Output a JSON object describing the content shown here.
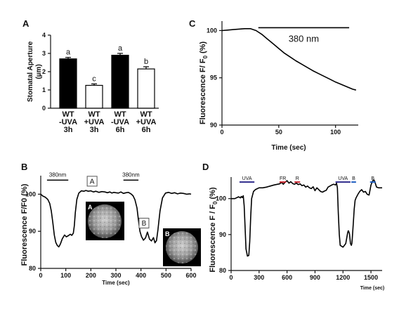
{
  "panels": {
    "A": {
      "label": "A",
      "chart_data": {
        "type": "bar",
        "categories": [
          [
            "WT",
            "-UVA",
            "3h"
          ],
          [
            "WT",
            "+UVA",
            "3h"
          ],
          [
            "WT",
            "-UVA",
            "6h"
          ],
          [
            "WT",
            "+UVA",
            "6h"
          ]
        ],
        "values": [
          2.7,
          1.25,
          2.9,
          2.15
        ],
        "errors": [
          0.08,
          0.08,
          0.1,
          0.12
        ],
        "fills": [
          "#000000",
          "#ffffff",
          "#000000",
          "#ffffff"
        ],
        "letters": [
          "a",
          "c",
          "a",
          "b"
        ],
        "ylabel_lines": [
          "Stomatal Aperture",
          "(µm)"
        ],
        "ylim": [
          0,
          4
        ],
        "yticks": [
          0,
          1,
          2,
          3,
          4
        ]
      }
    },
    "B": {
      "label": "B",
      "chart_data": {
        "type": "line",
        "ylabel": "Fluorescence F/F0 (%)",
        "xlabel": "Time (sec)",
        "xlim": [
          0,
          600
        ],
        "ylim": [
          80,
          105
        ],
        "xticks": [
          0,
          100,
          200,
          300,
          400,
          500,
          600
        ],
        "yticks": [
          80,
          90,
          100
        ],
        "series": [
          {
            "x": [
              0,
              8,
              18,
              28,
              36,
              42,
              48,
              54,
              60,
              66,
              72,
              78,
              86,
              95,
              102,
              110,
              118,
              124,
              130,
              134,
              138,
              144,
              152,
              162,
              172,
              180,
              190,
              200,
              210,
              220,
              232,
              244,
              256,
              266,
              276,
              284,
              292,
              300,
              310,
              320,
              330,
              340,
              350,
              360,
              368,
              376,
              384,
              390,
              396,
              402,
              410,
              418,
              426,
              434,
              442,
              450,
              456,
              462,
              468,
              476,
              486,
              498,
              510,
              522,
              534,
              546,
              558,
              570,
              582,
              594,
              600
            ],
            "y": [
              100.0,
              99.5,
              99.2,
              98.6,
              97.5,
              95.5,
              92.5,
              89.0,
              87.0,
              86.2,
              85.8,
              86.5,
              88.0,
              89.0,
              88.5,
              88.8,
              89.2,
              88.9,
              89.5,
              91.5,
              95.0,
              98.6,
              100.3,
              100.9,
              100.8,
              101.0,
              100.8,
              100.9,
              100.6,
              100.8,
              100.5,
              100.7,
              100.6,
              100.4,
              100.6,
              100.3,
              100.5,
              100.4,
              100.3,
              100.6,
              100.2,
              100.4,
              100.5,
              100.1,
              99.6,
              98.5,
              96.3,
              93.0,
              90.0,
              88.6,
              87.6,
              88.2,
              89.8,
              87.9,
              87.4,
              88.3,
              86.9,
              87.5,
              90.5,
              95.5,
              99.0,
              100.3,
              100.5,
              100.2,
              100.4,
              100.1,
              100.3,
              100.2,
              100.0,
              100.1,
              100.0
            ]
          }
        ],
        "stim_label": "380nm",
        "stim_bars": [
          [
            25,
            110
          ],
          [
            330,
            390
          ]
        ],
        "marker_boxes": [
          {
            "text": "A",
            "x": 205,
            "y": 103.5
          },
          {
            "text": "B",
            "x": 412,
            "y": 92.2
          }
        ],
        "inset_labels": [
          "A",
          "B"
        ]
      }
    },
    "C": {
      "label": "C",
      "chart_data": {
        "type": "line",
        "ylabel_parts": [
          "Fluorescence F/ F",
          "0",
          " (%)"
        ],
        "xlabel": "Time (sec)",
        "xlim": [
          0,
          120
        ],
        "ylim": [
          90,
          101
        ],
        "xticks": [
          0,
          50,
          100
        ],
        "yticks": [
          90,
          95,
          100
        ],
        "series": [
          {
            "x": [
              0,
              5,
              10,
              15,
              20,
              25,
              30,
              35,
              40,
              45,
              50,
              55,
              60,
              65,
              70,
              75,
              80,
              85,
              90,
              95,
              100,
              105,
              110,
              115,
              118
            ],
            "y": [
              100.0,
              100.05,
              100.1,
              100.15,
              100.2,
              100.2,
              100.0,
              99.6,
              99.1,
              98.6,
              98.1,
              97.6,
              97.2,
              96.8,
              96.45,
              96.1,
              95.75,
              95.45,
              95.15,
              94.85,
              94.55,
              94.3,
              94.05,
              93.8,
              93.7
            ]
          }
        ],
        "stim_label": "380 nm",
        "stim_bar": [
          32,
          112
        ]
      }
    },
    "D": {
      "label": "D",
      "chart_data": {
        "type": "line",
        "ylabel_parts": [
          "Fluorescence F / F",
          "0",
          " (%)"
        ],
        "xlabel": "Time (sec)",
        "xlim": [
          0,
          1620
        ],
        "ylim": [
          80,
          106
        ],
        "xticks": [
          0,
          300,
          600,
          900,
          1200,
          1500
        ],
        "yticks": [
          80,
          90,
          100
        ],
        "series": [
          {
            "x": [
              0,
              40,
              80,
              100,
              110,
              120,
              130,
              140,
              150,
              160,
              175,
              190,
              200,
              210,
              220,
              240,
              260,
              300,
              340,
              380,
              420,
              460,
              500,
              520,
              540,
              560,
              580,
              600,
              620,
              640,
              660,
              680,
              700,
              720,
              740,
              760,
              780,
              800,
              820,
              840,
              860,
              880,
              900,
              920,
              940,
              960,
              980,
              1000,
              1020,
              1040,
              1060,
              1080,
              1100,
              1120,
              1130,
              1140,
              1150,
              1160,
              1170,
              1200,
              1230,
              1250,
              1255,
              1260,
              1270,
              1280,
              1290,
              1295,
              1300,
              1310,
              1320,
              1330,
              1340,
              1360,
              1380,
              1400,
              1420,
              1440,
              1460,
              1480,
              1500,
              1520,
              1530,
              1540,
              1560,
              1580,
              1600,
              1620
            ],
            "y": [
              100.0,
              100.0,
              100.5,
              100.2,
              100.6,
              100.3,
              100.8,
              98.0,
              92.0,
              86.0,
              84.0,
              84.2,
              88.0,
              95.0,
              100.0,
              102.0,
              102.5,
              103.0,
              103.0,
              103.2,
              103.5,
              103.8,
              104.0,
              104.1,
              104.5,
              104.0,
              104.6,
              105.0,
              104.3,
              104.7,
              104.2,
              104.0,
              104.3,
              103.9,
              104.1,
              103.6,
              103.8,
              103.2,
              103.5,
              103.0,
              102.8,
              103.3,
              102.2,
              103.0,
              102.5,
              102.0,
              101.8,
              102.1,
              102.3,
              103.2,
              103.5,
              103.8,
              104.0,
              103.8,
              104.3,
              103.0,
              96.0,
              90.0,
              87.0,
              86.5,
              87.5,
              90.5,
              91.0,
              91.0,
              90.2,
              87.5,
              87.0,
              87.5,
              89.0,
              93.0,
              97.0,
              99.5,
              100.2,
              101.2,
              102.0,
              102.5,
              101.8,
              102.0,
              101.2,
              101.0,
              103.8,
              105.0,
              105.2,
              104.8,
              103.2,
              103.0,
              103.0,
              103.0
            ]
          }
        ],
        "stim_bars": [
          {
            "label": "UVA",
            "x": [
              90,
              250
            ],
            "color": "#2e2a8c"
          },
          {
            "label": "FR",
            "x": [
              520,
              590
            ],
            "color": "#c8202a"
          },
          {
            "label": "R",
            "x": [
              680,
              740
            ],
            "color": "#c8202a"
          },
          {
            "label": "UVA",
            "x": [
              1120,
              1280
            ],
            "color": "#2e2a8c"
          },
          {
            "label": "B",
            "x": [
              1290,
              1340
            ],
            "color": "#1a5bbf"
          },
          {
            "label": "B",
            "x": [
              1490,
              1550
            ],
            "color": "#1a5bbf"
          }
        ]
      }
    }
  }
}
